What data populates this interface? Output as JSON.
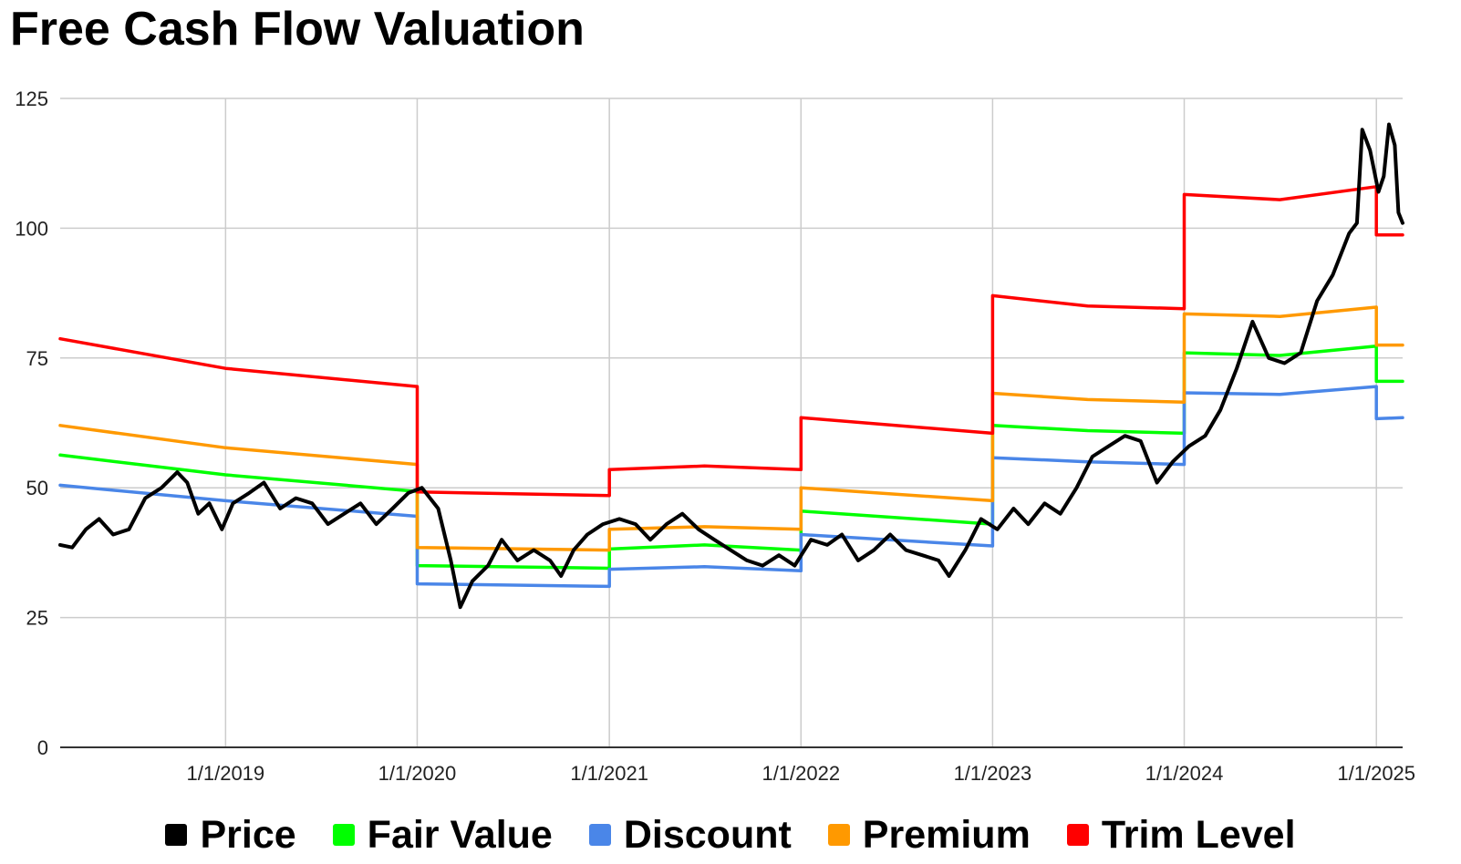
{
  "chart_data": {
    "type": "line",
    "title": "Free Cash Flow Valuation",
    "xlabel": "",
    "ylabel": "",
    "ylim": [
      0,
      125
    ],
    "y_ticks": [
      0,
      25,
      50,
      75,
      100,
      125
    ],
    "x_range": [
      "2018-02-20",
      "2025-02-20"
    ],
    "x_ticks": [
      {
        "date": "2019-01-01",
        "label": "1/1/2019"
      },
      {
        "date": "2020-01-01",
        "label": "1/1/2020"
      },
      {
        "date": "2021-01-01",
        "label": "1/1/2021"
      },
      {
        "date": "2022-01-01",
        "label": "1/1/2022"
      },
      {
        "date": "2023-01-01",
        "label": "1/1/2023"
      },
      {
        "date": "2024-01-01",
        "label": "1/1/2024"
      },
      {
        "date": "2025-01-01",
        "label": "1/1/2025"
      }
    ],
    "grid": true,
    "legend_position": "bottom",
    "series": [
      {
        "name": "Price",
        "color": "#000000",
        "points": [
          [
            "2018-02-20",
            39
          ],
          [
            "2018-03-15",
            38.5
          ],
          [
            "2018-04-10",
            42
          ],
          [
            "2018-05-05",
            44
          ],
          [
            "2018-06-01",
            41
          ],
          [
            "2018-07-01",
            42
          ],
          [
            "2018-08-01",
            48
          ],
          [
            "2018-09-01",
            50
          ],
          [
            "2018-10-01",
            53
          ],
          [
            "2018-10-20",
            51
          ],
          [
            "2018-11-10",
            45
          ],
          [
            "2018-12-01",
            47
          ],
          [
            "2018-12-25",
            42
          ],
          [
            "2019-01-15",
            47
          ],
          [
            "2019-02-15",
            49
          ],
          [
            "2019-03-15",
            51
          ],
          [
            "2019-04-15",
            46
          ],
          [
            "2019-05-15",
            48
          ],
          [
            "2019-06-15",
            47
          ],
          [
            "2019-07-15",
            43
          ],
          [
            "2019-08-15",
            45
          ],
          [
            "2019-09-15",
            47
          ],
          [
            "2019-10-15",
            43
          ],
          [
            "2019-11-15",
            46
          ],
          [
            "2019-12-15",
            49
          ],
          [
            "2020-01-10",
            50
          ],
          [
            "2020-02-10",
            46
          ],
          [
            "2020-03-05",
            36
          ],
          [
            "2020-03-23",
            27
          ],
          [
            "2020-04-15",
            32
          ],
          [
            "2020-05-15",
            35
          ],
          [
            "2020-06-10",
            40
          ],
          [
            "2020-07-10",
            36
          ],
          [
            "2020-08-10",
            38
          ],
          [
            "2020-09-10",
            36
          ],
          [
            "2020-10-01",
            33
          ],
          [
            "2020-10-25",
            38
          ],
          [
            "2020-11-20",
            41
          ],
          [
            "2020-12-20",
            43
          ],
          [
            "2021-01-20",
            44
          ],
          [
            "2021-02-20",
            43
          ],
          [
            "2021-03-20",
            40
          ],
          [
            "2021-04-20",
            43
          ],
          [
            "2021-05-20",
            45
          ],
          [
            "2021-06-20",
            42
          ],
          [
            "2021-07-20",
            40
          ],
          [
            "2021-08-20",
            38
          ],
          [
            "2021-09-20",
            36
          ],
          [
            "2021-10-20",
            35
          ],
          [
            "2021-11-20",
            37
          ],
          [
            "2021-12-20",
            35
          ],
          [
            "2022-01-20",
            40
          ],
          [
            "2022-02-20",
            39
          ],
          [
            "2022-03-20",
            41
          ],
          [
            "2022-04-20",
            36
          ],
          [
            "2022-05-20",
            38
          ],
          [
            "2022-06-20",
            41
          ],
          [
            "2022-07-20",
            38
          ],
          [
            "2022-08-20",
            37
          ],
          [
            "2022-09-20",
            36
          ],
          [
            "2022-10-10",
            33
          ],
          [
            "2022-11-10",
            38
          ],
          [
            "2022-12-10",
            44
          ],
          [
            "2023-01-10",
            42
          ],
          [
            "2023-02-10",
            46
          ],
          [
            "2023-03-10",
            43
          ],
          [
            "2023-04-10",
            47
          ],
          [
            "2023-05-10",
            45
          ],
          [
            "2023-06-10",
            50
          ],
          [
            "2023-07-10",
            56
          ],
          [
            "2023-08-10",
            58
          ],
          [
            "2023-09-10",
            60
          ],
          [
            "2023-10-10",
            59
          ],
          [
            "2023-11-10",
            51
          ],
          [
            "2023-12-10",
            55
          ],
          [
            "2024-01-10",
            58
          ],
          [
            "2024-02-10",
            60
          ],
          [
            "2024-03-10",
            65
          ],
          [
            "2024-04-10",
            73
          ],
          [
            "2024-05-10",
            82
          ],
          [
            "2024-06-10",
            75
          ],
          [
            "2024-07-10",
            74
          ],
          [
            "2024-08-10",
            76
          ],
          [
            "2024-09-10",
            86
          ],
          [
            "2024-10-10",
            91
          ],
          [
            "2024-11-10",
            99
          ],
          [
            "2024-11-25",
            101
          ],
          [
            "2024-12-05",
            119
          ],
          [
            "2024-12-20",
            115
          ],
          [
            "2025-01-05",
            107
          ],
          [
            "2025-01-15",
            110
          ],
          [
            "2025-01-25",
            120
          ],
          [
            "2025-02-05",
            116
          ],
          [
            "2025-02-12",
            103
          ],
          [
            "2025-02-20",
            101
          ]
        ]
      },
      {
        "name": "Fair Value",
        "color": "#00ff00",
        "points": [
          [
            "2018-02-20",
            56.3
          ],
          [
            "2019-01-01",
            52.5
          ],
          [
            "2020-01-01",
            49.3
          ],
          [
            "2020-01-01",
            35
          ],
          [
            "2021-01-01",
            34.5
          ],
          [
            "2021-01-01",
            38.2
          ],
          [
            "2021-07-01",
            39
          ],
          [
            "2022-01-01",
            38
          ],
          [
            "2022-01-01",
            45.5
          ],
          [
            "2023-01-01",
            43
          ],
          [
            "2023-01-01",
            62
          ],
          [
            "2023-07-01",
            61
          ],
          [
            "2024-01-01",
            60.5
          ],
          [
            "2024-01-01",
            76
          ],
          [
            "2024-07-01",
            75.5
          ],
          [
            "2025-01-01",
            77.3
          ],
          [
            "2025-01-01",
            70.5
          ],
          [
            "2025-02-20",
            70.5
          ]
        ]
      },
      {
        "name": "Discount",
        "color": "#4a86e8",
        "points": [
          [
            "2018-02-20",
            50.5
          ],
          [
            "2019-01-01",
            47.5
          ],
          [
            "2020-01-01",
            44.5
          ],
          [
            "2020-01-01",
            31.5
          ],
          [
            "2021-01-01",
            31
          ],
          [
            "2021-01-01",
            34.3
          ],
          [
            "2021-07-01",
            34.8
          ],
          [
            "2022-01-01",
            34
          ],
          [
            "2022-01-01",
            41
          ],
          [
            "2023-01-01",
            38.8
          ],
          [
            "2023-01-01",
            55.8
          ],
          [
            "2023-07-01",
            55
          ],
          [
            "2024-01-01",
            54.5
          ],
          [
            "2024-01-01",
            68.3
          ],
          [
            "2024-07-01",
            68
          ],
          [
            "2025-01-01",
            69.5
          ],
          [
            "2025-01-01",
            63.3
          ],
          [
            "2025-02-20",
            63.5
          ]
        ]
      },
      {
        "name": "Premium",
        "color": "#ff9900",
        "points": [
          [
            "2018-02-20",
            62
          ],
          [
            "2019-01-01",
            57.7
          ],
          [
            "2020-01-01",
            54.5
          ],
          [
            "2020-01-01",
            38.5
          ],
          [
            "2021-01-01",
            38
          ],
          [
            "2021-01-01",
            42
          ],
          [
            "2021-07-01",
            42.5
          ],
          [
            "2022-01-01",
            42
          ],
          [
            "2022-01-01",
            50
          ],
          [
            "2023-01-01",
            47.5
          ],
          [
            "2023-01-01",
            68.2
          ],
          [
            "2023-07-01",
            67
          ],
          [
            "2024-01-01",
            66.5
          ],
          [
            "2024-01-01",
            83.5
          ],
          [
            "2024-07-01",
            83
          ],
          [
            "2025-01-01",
            84.8
          ],
          [
            "2025-01-01",
            77.5
          ],
          [
            "2025-02-20",
            77.5
          ]
        ]
      },
      {
        "name": "Trim Level",
        "color": "#ff0000",
        "points": [
          [
            "2018-02-20",
            78.7
          ],
          [
            "2019-01-01",
            73
          ],
          [
            "2020-01-01",
            69.5
          ],
          [
            "2020-01-01",
            49.2
          ],
          [
            "2021-01-01",
            48.5
          ],
          [
            "2021-01-01",
            53.5
          ],
          [
            "2021-07-01",
            54.2
          ],
          [
            "2022-01-01",
            53.5
          ],
          [
            "2022-01-01",
            63.5
          ],
          [
            "2023-01-01",
            60.5
          ],
          [
            "2023-01-01",
            87
          ],
          [
            "2023-07-01",
            85
          ],
          [
            "2024-01-01",
            84.5
          ],
          [
            "2024-01-01",
            106.5
          ],
          [
            "2024-07-01",
            105.5
          ],
          [
            "2025-01-01",
            108
          ],
          [
            "2025-01-01",
            98.7
          ],
          [
            "2025-02-20",
            98.7
          ]
        ]
      }
    ]
  }
}
